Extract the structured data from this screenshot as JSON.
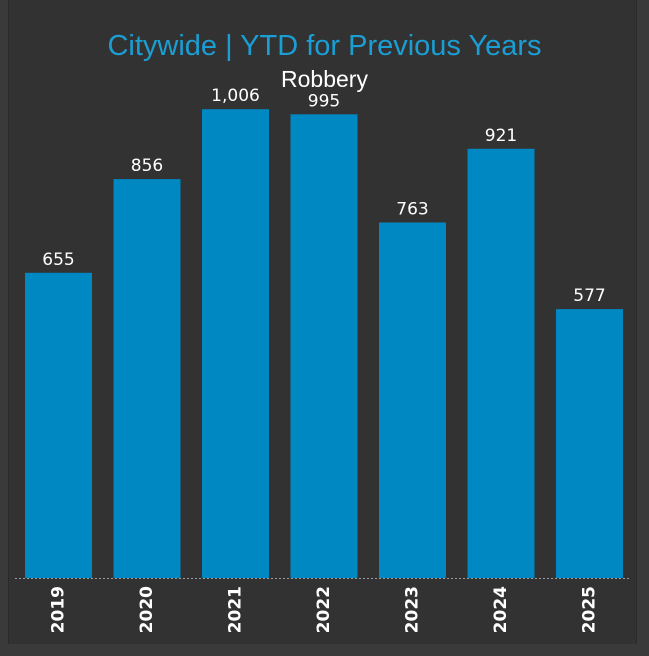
{
  "chart_data": {
    "type": "bar",
    "title": "Citywide | YTD for Previous Years",
    "subtitle": "Robbery",
    "categories": [
      "2019",
      "2020",
      "2021",
      "2022",
      "2023",
      "2024",
      "2025"
    ],
    "values": [
      655,
      856,
      1006,
      995,
      763,
      921,
      577
    ],
    "value_labels": [
      "655",
      "856",
      "1,006",
      "995",
      "763",
      "921",
      "577"
    ],
    "xlabel": "",
    "ylabel": "",
    "ylim": [
      0,
      1176
    ],
    "grid": false,
    "legend": "none",
    "colors": {
      "bar": "#0088c2",
      "title": "#1a9ed4",
      "background": "#323232"
    }
  }
}
